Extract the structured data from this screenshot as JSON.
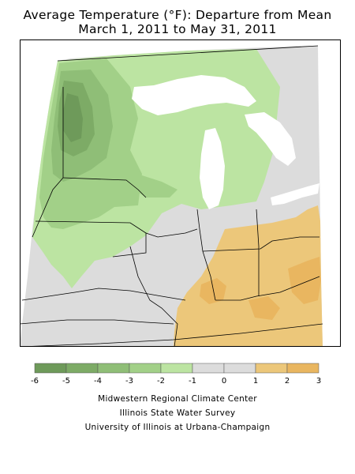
{
  "title": "Average Temperature (°F): Departure from Mean",
  "subtitle": "March 1, 2011 to May 31, 2011",
  "legend": {
    "ticks": [
      "-6",
      "-5",
      "-4",
      "-3",
      "-2",
      "-1",
      "0",
      "1",
      "2",
      "3"
    ],
    "colors": [
      "#6e9a5a",
      "#7dab66",
      "#8fbe77",
      "#a2d088",
      "#bce4a2",
      "#dcdcdc",
      "#dcdcdc",
      "#ecc77a",
      "#e9b660"
    ]
  },
  "map_colors": {
    "water": "#ffffff",
    "neutral": "#dcdcdc",
    "cool_1": "#bce4a2",
    "cool_2": "#a2d088",
    "cool_3": "#8fbe77",
    "cool_4": "#7dab66",
    "cool_5": "#6e9a5a",
    "warm_1": "#ecc77a",
    "warm_2": "#e9b660",
    "border": "#000000"
  },
  "credits": {
    "line1": "Midwestern Regional Climate Center",
    "line2": "Illinois State Water Survey",
    "line3": "University of Illinois at Urbana-Champaign"
  }
}
